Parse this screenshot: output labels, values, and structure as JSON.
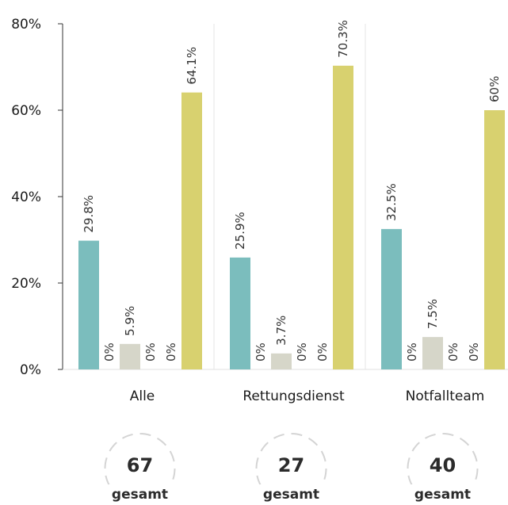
{
  "chart_data": {
    "type": "bar",
    "categories": [
      "Alle",
      "Rettungsdienst",
      "Notfallteam"
    ],
    "ylim": [
      0,
      80
    ],
    "yticks": [
      0,
      20,
      40,
      60,
      80
    ],
    "ytick_labels": [
      "0%",
      "20%",
      "40%",
      "60%",
      "80%"
    ],
    "series": [
      {
        "color": "#7bbdbd",
        "values": [
          29.8,
          25.9,
          32.5
        ],
        "labels": [
          "29.8%",
          "25.9%",
          "32.5%"
        ]
      },
      {
        "color": "#d6d6c9",
        "values": [
          0,
          0,
          0
        ],
        "labels": [
          "0%",
          "0%",
          "0%"
        ]
      },
      {
        "color": "#d6d6c9",
        "values": [
          5.9,
          3.7,
          7.5
        ],
        "labels": [
          "5.9%",
          "3.7%",
          "7.5%"
        ]
      },
      {
        "color": "#d6d6c9",
        "values": [
          0,
          0,
          0
        ],
        "labels": [
          "0%",
          "0%",
          "0%"
        ]
      },
      {
        "color": "#d6d6c9",
        "values": [
          0,
          0,
          0
        ],
        "labels": [
          "0%",
          "0%",
          "0%"
        ]
      },
      {
        "color": "#d8d16f",
        "values": [
          64.1,
          70.3,
          60
        ],
        "labels": [
          "64.1%",
          "70.3%",
          "60%"
        ]
      }
    ],
    "totals": [
      {
        "value": "67",
        "label": "gesamt"
      },
      {
        "value": "27",
        "label": "gesamt"
      },
      {
        "value": "40",
        "label": "gesamt"
      }
    ],
    "grid": false,
    "group_separators": true
  }
}
